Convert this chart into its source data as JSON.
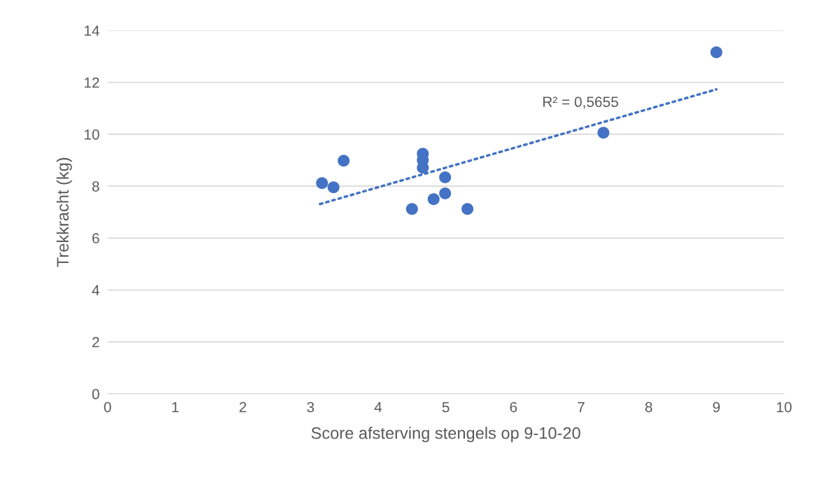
{
  "chart_data": {
    "type": "scatter",
    "xlabel": "Score afsterving stengels op 9-10-20",
    "ylabel": "Trekkracht (kg)",
    "series": [
      {
        "color": "#4472c4",
        "marker": "circle",
        "x": [
          3.17,
          3.34,
          3.49,
          4.5,
          4.66,
          4.66,
          4.66,
          4.82,
          4.99,
          4.99,
          5.32,
          7.33,
          9.0
        ],
        "values": [
          8.12,
          7.96,
          8.98,
          7.12,
          9.25,
          9.01,
          8.71,
          7.5,
          8.34,
          7.72,
          7.12,
          10.06,
          13.16
        ]
      },
      {
        "type": "line",
        "color": "#4472c4",
        "line_style": "dotted",
        "x": [
          3.14,
          9.0
        ],
        "values": [
          7.31,
          11.73
        ]
      }
    ],
    "annotations": [
      "R² = 0,5655"
    ],
    "xlim": [
      0,
      10
    ],
    "xticks": [
      0,
      1,
      2,
      3,
      4,
      5,
      6,
      7,
      8,
      9,
      10
    ],
    "ylim": [
      0,
      14
    ],
    "yticks": [
      0,
      2,
      4,
      6,
      8,
      10,
      12,
      14
    ],
    "grid": "y",
    "legend": false
  }
}
